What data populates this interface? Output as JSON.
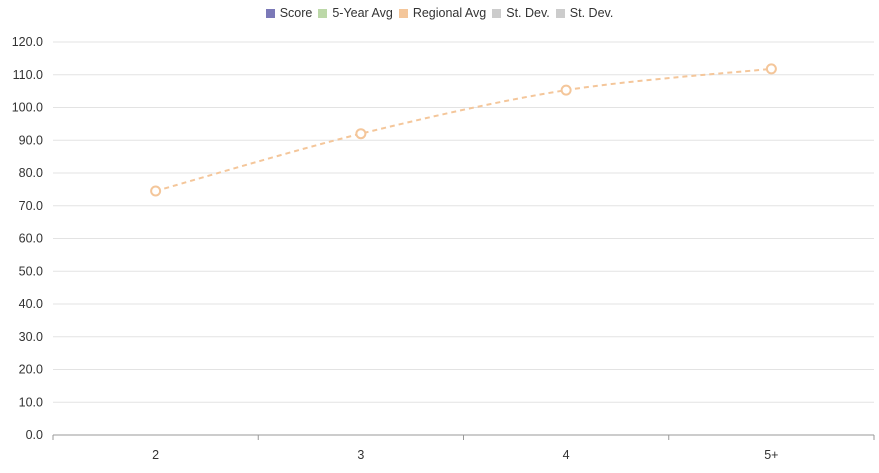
{
  "chart_data": {
    "type": "line",
    "categories": [
      "2",
      "3",
      "4",
      "5+"
    ],
    "ylim": [
      0,
      120
    ],
    "y_ticks": [
      0,
      10,
      20,
      30,
      40,
      50,
      60,
      70,
      80,
      90,
      100,
      110,
      120
    ],
    "y_tick_labels": [
      "0.0",
      "10.0",
      "20.0",
      "30.0",
      "40.0",
      "50.0",
      "60.0",
      "70.0",
      "80.0",
      "90.0",
      "100.0",
      "110.0",
      "120.0"
    ],
    "grid": true,
    "legend_position": "top-center",
    "legend": [
      {
        "name": "Score",
        "color": "#7b79b8"
      },
      {
        "name": "5-Year Avg",
        "color": "#bcd8a8"
      },
      {
        "name": "Regional Avg",
        "color": "#f4c69a"
      },
      {
        "name": "St. Dev.",
        "color": "#cccccc"
      },
      {
        "name": "St. Dev.",
        "color": "#cccccc"
      }
    ],
    "series": [
      {
        "name": "Regional Avg",
        "color": "#f4c69a",
        "values": [
          74.5,
          92,
          105.3,
          111.8
        ],
        "style": "dashed-smooth",
        "marker": "hollow-circle"
      }
    ]
  }
}
